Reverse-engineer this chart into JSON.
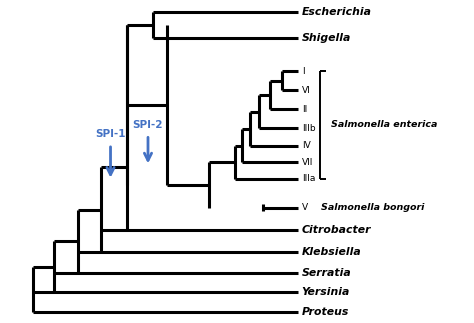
{
  "background_color": "#ffffff",
  "line_color": "#000000",
  "line_width": 2.2,
  "arrow_color": "#4472c4",
  "salmonella_enterica_label": "Salmonella enterica",
  "salmonella_bongori_label": "Salmonella bongori",
  "spi1_label": "SPI-1",
  "spi2_label": "SPI-2",
  "taxa_order": [
    "Escherichia",
    "Shigella",
    "I",
    "VI",
    "II",
    "IIIb",
    "IV",
    "VII",
    "IIIa",
    "V",
    "Citrobacter",
    "Klebsiella",
    "Serratia",
    "Yersinia",
    "Proteus"
  ],
  "enterica_taxa": [
    "I",
    "VI",
    "II",
    "IIIb",
    "IV",
    "VII",
    "IIIa"
  ],
  "italic_bold_taxa": [
    "Escherichia",
    "Shigella",
    "Citrobacter",
    "Klebsiella",
    "Serratia",
    "Yersinia",
    "Proteus"
  ]
}
